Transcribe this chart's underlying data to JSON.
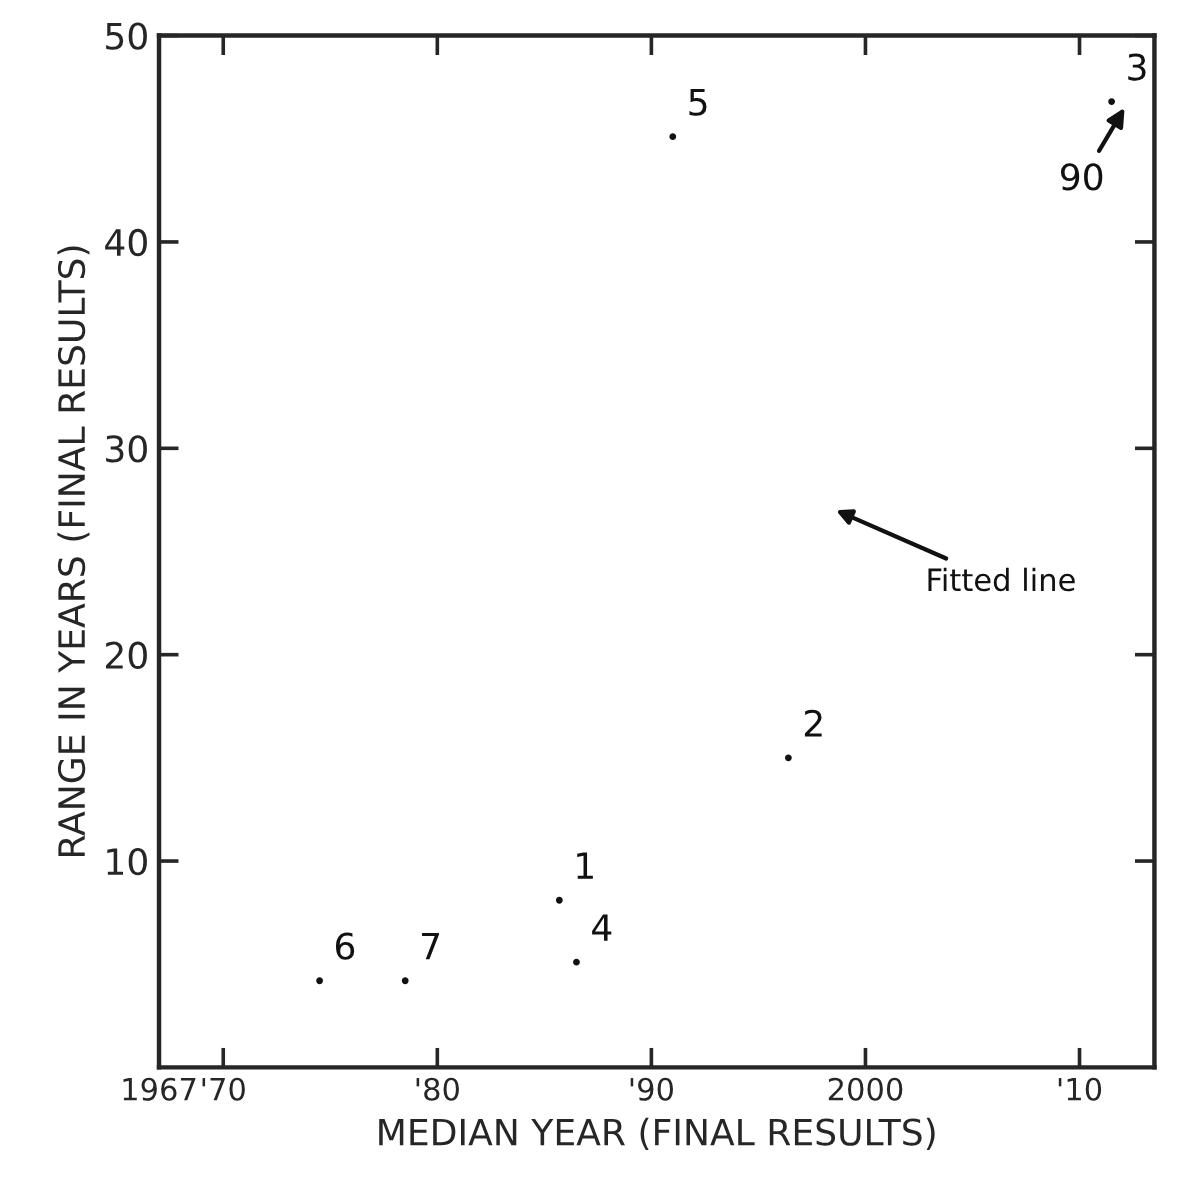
{
  "chart_data": {
    "type": "scatter",
    "xlabel": "MEDIAN YEAR (FINAL RESULTS)",
    "ylabel": "RANGE IN YEARS (FINAL RESULTS)",
    "x": [
      1985.7,
      1996.4,
      2011.5,
      1986.5,
      1991.0,
      1974.5,
      1978.5
    ],
    "series": [
      {
        "color": "#111111",
        "values": [
          8.1,
          15.0,
          46.8,
          5.1,
          45.1,
          4.2,
          4.2
        ]
      }
    ],
    "marker": "circle",
    "xlim": [
      1967,
      2013.5
    ],
    "ylim": [
      0,
      50
    ],
    "xticks": [
      {
        "value": 1967,
        "label": "1967"
      },
      {
        "value": 1970,
        "label": "'70"
      },
      {
        "value": 1980,
        "label": "'80"
      },
      {
        "value": 1990,
        "label": "'90"
      },
      2000,
      {
        "value": 2010,
        "label": "'10"
      }
    ],
    "yticks": [
      10,
      20,
      30,
      40,
      50
    ],
    "annotations": [
      {
        "text": "1",
        "x": 1985.7,
        "y": 8.1
      },
      {
        "text": "2",
        "x": 1996.4,
        "y": 15.0
      },
      {
        "text": "3",
        "x": 2011.5,
        "y": 46.8
      },
      {
        "text": "4",
        "x": 1986.5,
        "y": 5.1
      },
      {
        "text": "5",
        "x": 1991.0,
        "y": 45.1
      },
      {
        "text": "6",
        "x": 1974.5,
        "y": 4.2
      },
      {
        "text": "7",
        "x": 1978.5,
        "y": 4.2
      },
      "90",
      "Fitted line"
    ],
    "grid": false
  }
}
